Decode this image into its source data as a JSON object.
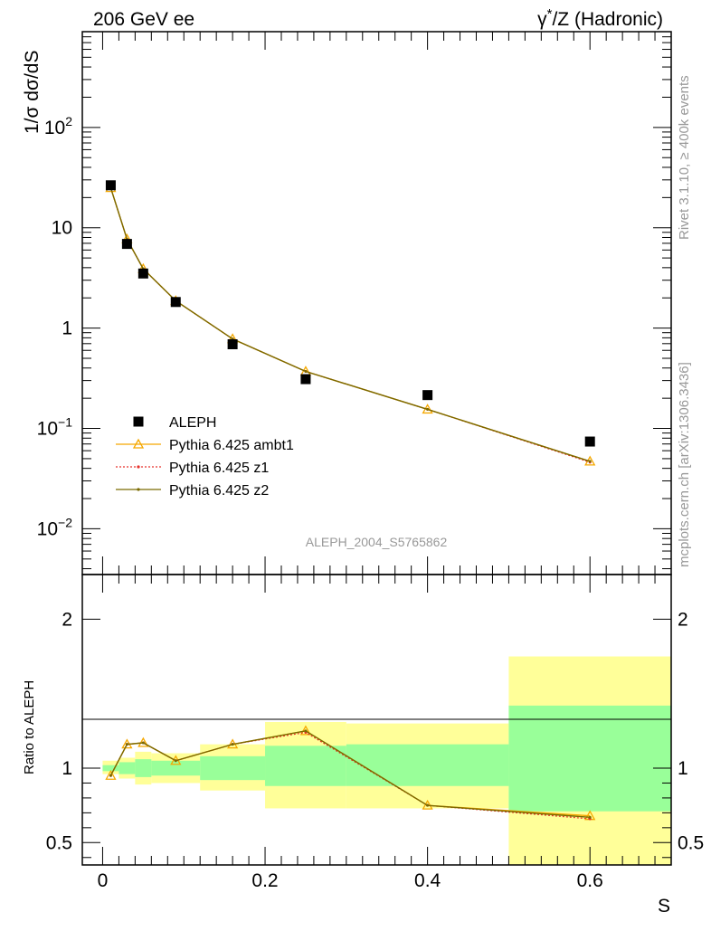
{
  "header": {
    "left_title": "206 GeV ee",
    "right_title_prefix": "γ",
    "right_title_sup": "*",
    "right_title_suffix": "/Z (Hadronic)"
  },
  "side_labels": {
    "rivet": "Rivet 3.1.10, ≥ 400k events",
    "mcplots": "mcplots.cern.ch [arXiv:1306.3436]"
  },
  "watermark": "ALEPH_2004_S5765862",
  "colors": {
    "data": "#000000",
    "ambt1": "#f5a800",
    "z1": "#e8302a",
    "z2": "#7a6a00",
    "band_outer": "#ffff99",
    "band_inner": "#99ff99"
  },
  "chart_data": [
    {
      "type": "scatter",
      "panel": "main",
      "ylabel_prefix": "1/σ  dσ/d",
      "ylabel_var": "S",
      "yscale": "log",
      "xlim": [
        -0.025,
        0.7
      ],
      "ylim": [
        0.0035,
        900
      ],
      "y_tick_labels": [
        {
          "value": 0.01,
          "base": "10",
          "exp": "−2"
        },
        {
          "value": 0.1,
          "base": "10",
          "exp": "−1"
        },
        {
          "value": 1,
          "base": "1",
          "exp": ""
        },
        {
          "value": 10,
          "base": "10",
          "exp": ""
        },
        {
          "value": 100,
          "base": "10",
          "exp": "2"
        }
      ],
      "legend": [
        {
          "name": "ALEPH",
          "style": "square"
        },
        {
          "name": "Pythia 6.425 ambt1",
          "style": "triangle"
        },
        {
          "name": "Pythia 6.425 z1",
          "style": "dotted"
        },
        {
          "name": "Pythia 6.425 z2",
          "style": "solid-dot"
        }
      ],
      "x": [
        0.01,
        0.03,
        0.05,
        0.09,
        0.16,
        0.25,
        0.4,
        0.6
      ],
      "series": [
        {
          "name": "ALEPH",
          "values": [
            26.5,
            6.9,
            3.5,
            1.82,
            0.69,
            0.31,
            0.215,
            0.074
          ]
        },
        {
          "name": "Pythia 6.425 ambt1",
          "values": [
            25.0,
            7.7,
            3.9,
            1.87,
            0.78,
            0.37,
            0.155,
            0.047
          ]
        },
        {
          "name": "Pythia 6.425 z1",
          "values": [
            25.0,
            7.7,
            3.9,
            1.87,
            0.78,
            0.37,
            0.155,
            0.046
          ]
        },
        {
          "name": "Pythia 6.425 z2",
          "values": [
            25.0,
            7.7,
            3.9,
            1.87,
            0.78,
            0.37,
            0.155,
            0.047
          ]
        }
      ],
      "grid": false
    },
    {
      "type": "line",
      "panel": "ratio",
      "xlabel": "S",
      "ylabel": "Ratio to ALEPH",
      "xlim": [
        -0.025,
        0.7
      ],
      "ylim": [
        0.35,
        2.3
      ],
      "x_tick_labels": [
        "0",
        "0.2",
        "0.4",
        "0.6"
      ],
      "x_ticks": [
        0,
        0.2,
        0.4,
        0.6
      ],
      "y_tick_labels": [
        "0.5",
        "1",
        "2"
      ],
      "y_ticks": [
        0.5,
        1,
        2
      ],
      "bands": [
        {
          "x0": 0.0,
          "x1": 0.02,
          "outer": [
            0.96,
            1.05
          ],
          "inner": [
            0.98,
            1.02
          ]
        },
        {
          "x0": 0.02,
          "x1": 0.04,
          "outer": [
            0.93,
            1.07
          ],
          "inner": [
            0.96,
            1.04
          ]
        },
        {
          "x0": 0.04,
          "x1": 0.06,
          "outer": [
            0.89,
            1.11
          ],
          "inner": [
            0.94,
            1.06
          ]
        },
        {
          "x0": 0.06,
          "x1": 0.12,
          "outer": [
            0.9,
            1.1
          ],
          "inner": [
            0.95,
            1.05
          ]
        },
        {
          "x0": 0.12,
          "x1": 0.2,
          "outer": [
            0.85,
            1.16
          ],
          "inner": [
            0.92,
            1.08
          ]
        },
        {
          "x0": 0.2,
          "x1": 0.3,
          "outer": [
            0.73,
            1.31
          ],
          "inner": [
            0.88,
            1.15
          ]
        },
        {
          "x0": 0.3,
          "x1": 0.5,
          "outer": [
            0.73,
            1.3
          ],
          "inner": [
            0.88,
            1.16
          ]
        },
        {
          "x0": 0.5,
          "x1": 0.7,
          "outer": [
            0.35,
            1.75
          ],
          "inner": [
            0.71,
            1.42
          ]
        }
      ],
      "x": [
        0.01,
        0.03,
        0.05,
        0.09,
        0.16,
        0.25,
        0.4,
        0.6
      ],
      "series": [
        {
          "name": "Pythia 6.425 ambt1",
          "values": [
            0.95,
            1.16,
            1.17,
            1.05,
            1.16,
            1.25,
            0.75,
            0.68
          ]
        },
        {
          "name": "Pythia 6.425 z1",
          "values": [
            0.95,
            1.16,
            1.17,
            1.05,
            1.16,
            1.24,
            0.75,
            0.66
          ]
        },
        {
          "name": "Pythia 6.425 z2",
          "values": [
            0.95,
            1.16,
            1.17,
            1.05,
            1.16,
            1.25,
            0.75,
            0.67
          ]
        }
      ],
      "grid": false
    }
  ]
}
